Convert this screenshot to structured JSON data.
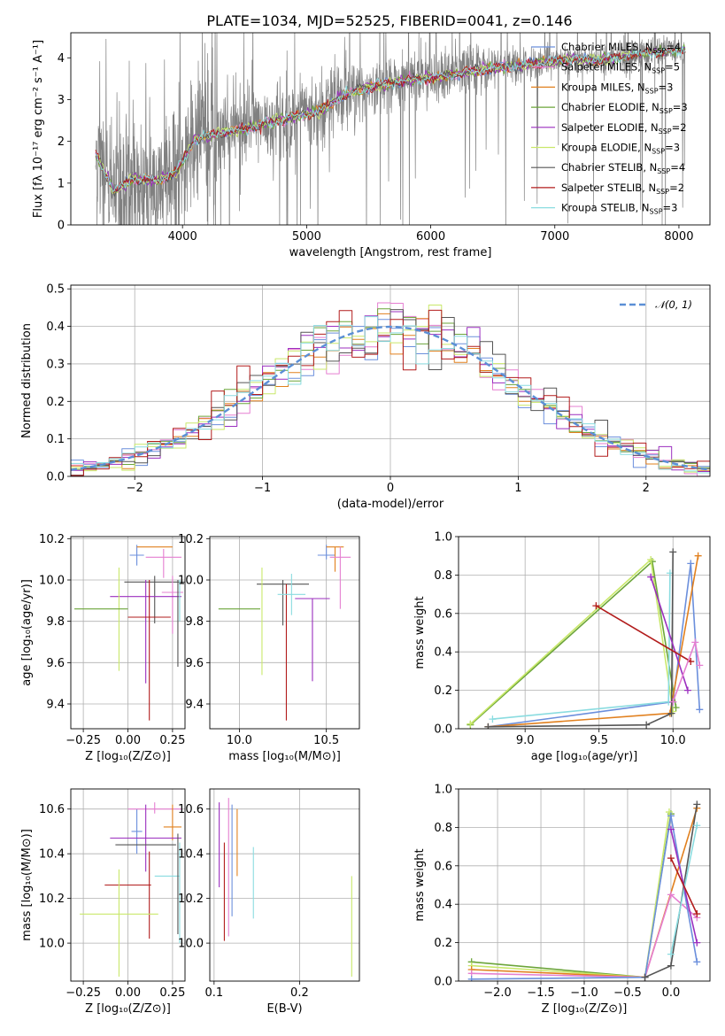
{
  "title": "PLATE=1034, MJD=52525, FIBERID=0041, z=0.146",
  "colors": {
    "chabrier_miles": "#6b8fdc",
    "salpeter_miles": "#e57fd1",
    "kroupa_miles": "#e1801e",
    "chabrier_elodie": "#6ca53a",
    "salpeter_elodie": "#9b2fbf",
    "kroupa_elodie": "#c9e86a",
    "chabrier_stelib": "#555555",
    "salpeter_stelib": "#b21c1c",
    "kroupa_stelib": "#8adce0",
    "data": "#808080",
    "normal": "#5b8fd6"
  },
  "chart_data": [
    {
      "id": "spectrum",
      "type": "line",
      "title": "PLATE=1034, MJD=52525, FIBERID=0041, z=0.146",
      "xlabel": "wavelength [Angstrom, rest frame]",
      "ylabel": "Flux [fλ 10⁻¹⁷ erg cm⁻² s⁻¹ A⁻¹]",
      "xlim": [
        3100,
        8250
      ],
      "ylim": [
        0,
        4.6
      ],
      "xticks": [
        "4000",
        "5000",
        "6000",
        "7000",
        "8000"
      ],
      "yticks": [
        "0",
        "1",
        "2",
        "3",
        "4"
      ],
      "grid": false,
      "legend_placement": "top-right",
      "legend": [
        {
          "name": "Chabrier MILES",
          "n": "4",
          "color_key": "chabrier_miles"
        },
        {
          "name": "Salpeter MILES",
          "n": "5",
          "color_key": "salpeter_miles"
        },
        {
          "name": "Kroupa MILES",
          "n": "3",
          "color_key": "kroupa_miles"
        },
        {
          "name": "Chabrier ELODIE",
          "n": "3",
          "color_key": "chabrier_elodie"
        },
        {
          "name": "Salpeter ELODIE",
          "n": "2",
          "color_key": "salpeter_elodie"
        },
        {
          "name": "Kroupa ELODIE",
          "n": "3",
          "color_key": "kroupa_elodie"
        },
        {
          "name": "Chabrier STELIB",
          "n": "4",
          "color_key": "chabrier_stelib"
        },
        {
          "name": "Salpeter STELIB",
          "n": "2",
          "color_key": "salpeter_stelib"
        },
        {
          "name": "Kroupa STELIB",
          "n": "3",
          "color_key": "kroupa_stelib"
        }
      ],
      "continuum": {
        "x": [
          3300,
          3450,
          3600,
          3800,
          3950,
          4100,
          4300,
          4500,
          4700,
          4900,
          5100,
          5300,
          5500,
          5700,
          5900,
          6100,
          6300,
          6500,
          6700,
          6900,
          7100,
          7300,
          7500,
          7700,
          7900,
          8050
        ],
        "y": [
          1.7,
          0.8,
          1.1,
          1.05,
          1.25,
          2.05,
          2.2,
          2.3,
          2.45,
          2.6,
          2.7,
          3.1,
          3.3,
          3.4,
          3.5,
          3.55,
          3.65,
          3.75,
          3.8,
          3.9,
          3.95,
          3.95,
          4.0,
          4.1,
          4.15,
          4.2
        ]
      }
    },
    {
      "id": "residuals",
      "type": "bar",
      "xlabel": "(data-model)/error",
      "ylabel": "Normed distribution",
      "xlim": [
        -2.5,
        2.5
      ],
      "ylim": [
        0,
        0.51
      ],
      "xticks": [
        "−2",
        "−1",
        "0",
        "1",
        "2"
      ],
      "yticks": [
        "0.0",
        "0.1",
        "0.2",
        "0.3",
        "0.4",
        "0.5"
      ],
      "grid": true,
      "legend_placement": "top-right",
      "legend": [
        {
          "name": "𝒩(0, 1)",
          "color_key": "normal"
        }
      ],
      "bin_edges": [
        -2.5,
        -2.4,
        -2.3,
        -2.2,
        -2.1,
        -2.0,
        -1.9,
        -1.8,
        -1.7,
        -1.6,
        -1.5,
        -1.4,
        -1.3,
        -1.2,
        -1.1,
        -1.0,
        -0.9,
        -0.8,
        -0.7,
        -0.6,
        -0.5,
        -0.4,
        -0.3,
        -0.2,
        -0.1,
        0.0,
        0.1,
        0.2,
        0.3,
        0.4,
        0.5,
        0.6,
        0.7,
        0.8,
        0.9,
        1.0,
        1.1,
        1.2,
        1.3,
        1.4,
        1.5,
        1.6,
        1.7,
        1.8,
        1.9,
        2.0,
        2.1,
        2.2,
        2.3,
        2.4,
        2.5
      ]
    },
    {
      "id": "age-vs-z",
      "type": "scatter",
      "xlabel": "Z [log₁₀(Z/Z⊙)]",
      "ylabel": "age  [log₁₀(age/yr)]",
      "xlim": [
        -0.32,
        0.32
      ],
      "ylim": [
        9.28,
        10.21
      ],
      "xticks": [
        "−0.25",
        "0.00",
        "0.25"
      ],
      "yticks": [
        "9.4",
        "9.6",
        "9.8",
        "10.0",
        "10.2"
      ],
      "grid": true,
      "points": [
        {
          "x": 0.05,
          "y": 10.12,
          "xerr": 0.04,
          "yerr": [
            0.05,
            0.05
          ],
          "color_key": "chabrier_miles"
        },
        {
          "x": 0.15,
          "y": 10.16,
          "xerr": 0.1,
          "yerr": [
            0.0,
            0.0
          ],
          "color_key": "kroupa_miles"
        },
        {
          "x": 0.2,
          "y": 10.11,
          "xerr": 0.1,
          "yerr": [
            0.04,
            0.1
          ],
          "color_key": "salpeter_miles"
        },
        {
          "x": 0.15,
          "y": 9.99,
          "xerr": 0.17,
          "yerr": [
            0.03,
            0.2
          ],
          "color_key": "chabrier_stelib"
        },
        {
          "x": 0.25,
          "y": 9.94,
          "xerr": 0.06,
          "yerr": [
            0.08,
            0.2
          ],
          "color_key": "salpeter_miles"
        },
        {
          "x": 0.1,
          "y": 9.92,
          "xerr": 0.2,
          "yerr": [
            0.08,
            0.42
          ],
          "color_key": "salpeter_elodie"
        },
        {
          "x": -0.05,
          "y": 9.86,
          "xerr": 0.0,
          "yerr": [
            0.2,
            0.3
          ],
          "color_key": "kroupa_elodie"
        },
        {
          "x": -0.15,
          "y": 9.86,
          "xerr": 0.15,
          "yerr": [
            0.0,
            0.0
          ],
          "color_key": "chabrier_elodie"
        },
        {
          "x": 0.12,
          "y": 9.82,
          "xerr": 0.12,
          "yerr": [
            0.18,
            0.5
          ],
          "color_key": "salpeter_stelib"
        },
        {
          "x": 0.28,
          "y": 9.98,
          "xerr": 0.0,
          "yerr": [
            0.02,
            0.4
          ],
          "color_key": "chabrier_stelib"
        },
        {
          "x": 0.29,
          "y": 9.95,
          "xerr": 0.0,
          "yerr": [
            0.05,
            0.15
          ],
          "color_key": "kroupa_stelib"
        }
      ]
    },
    {
      "id": "age-vs-mass",
      "type": "scatter",
      "xlabel": "mass [log₁₀(M/M⊙)]",
      "ylabel": "",
      "xlim": [
        9.83,
        10.69
      ],
      "ylim": [
        9.28,
        10.21
      ],
      "xticks": [
        "10.0",
        "10.5"
      ],
      "yticks": [
        "9.4",
        "9.6",
        "9.8",
        "10.0",
        "10.2"
      ],
      "grid": true,
      "points": [
        {
          "x": 10.5,
          "y": 10.12,
          "xerr": 0.05,
          "yerr": [
            0.05,
            0.02
          ],
          "color_key": "chabrier_miles"
        },
        {
          "x": 10.55,
          "y": 10.16,
          "xerr": 0.05,
          "yerr": [
            0.0,
            0.12
          ],
          "color_key": "kroupa_miles"
        },
        {
          "x": 10.58,
          "y": 10.11,
          "xerr": 0.06,
          "yerr": [
            0.05,
            0.25
          ],
          "color_key": "salpeter_miles"
        },
        {
          "x": 10.25,
          "y": 9.98,
          "xerr": 0.15,
          "yerr": [
            0.02,
            0.2
          ],
          "color_key": "chabrier_stelib"
        },
        {
          "x": 10.42,
          "y": 9.91,
          "xerr": 0.1,
          "yerr": [
            0.0,
            0.4
          ],
          "color_key": "salpeter_elodie"
        },
        {
          "x": 10.13,
          "y": 9.86,
          "xerr": 0.0,
          "yerr": [
            0.2,
            0.32
          ],
          "color_key": "kroupa_elodie"
        },
        {
          "x": 10.0,
          "y": 9.86,
          "xerr": 0.12,
          "yerr": [
            0.0,
            0.0
          ],
          "color_key": "chabrier_elodie"
        },
        {
          "x": 10.27,
          "y": 9.82,
          "xerr": 0.0,
          "yerr": [
            0.16,
            0.5
          ],
          "color_key": "salpeter_stelib"
        },
        {
          "x": 10.3,
          "y": 9.93,
          "xerr": 0.08,
          "yerr": [
            0.1,
            0.1
          ],
          "color_key": "kroupa_stelib"
        }
      ]
    },
    {
      "id": "weight-vs-age",
      "type": "line",
      "xlabel": "age  [log₁₀(age/yr)]",
      "ylabel": "mass weight",
      "xlim": [
        8.55,
        10.25
      ],
      "ylim": [
        0,
        1.0
      ],
      "xticks": [
        "9.0",
        "9.5",
        "10.0"
      ],
      "yticks": [
        "0.0",
        "0.2",
        "0.4",
        "0.6",
        "0.8",
        "1.0"
      ],
      "grid": true,
      "series": [
        {
          "color_key": "chabrier_elodie",
          "x": [
            8.63,
            9.86,
            10.02
          ],
          "y": [
            0.02,
            0.87,
            0.11
          ]
        },
        {
          "color_key": "kroupa_elodie",
          "x": [
            8.63,
            9.85,
            10.0
          ],
          "y": [
            0.025,
            0.88,
            0.09
          ]
        },
        {
          "color_key": "chabrier_miles",
          "x": [
            8.75,
            10.0,
            10.12,
            10.18
          ],
          "y": [
            0.01,
            0.14,
            0.86,
            0.1
          ]
        },
        {
          "color_key": "kroupa_stelib",
          "x": [
            8.78,
            9.97,
            9.98
          ],
          "y": [
            0.05,
            0.14,
            0.81
          ]
        },
        {
          "color_key": "kroupa_miles",
          "x": [
            8.75,
            9.98,
            10.17
          ],
          "y": [
            0.01,
            0.08,
            0.9
          ]
        },
        {
          "color_key": "chabrier_stelib",
          "x": [
            8.75,
            9.82,
            9.99,
            10.0
          ],
          "y": [
            0.01,
            0.02,
            0.08,
            0.92
          ]
        },
        {
          "color_key": "salpeter_elodie",
          "x": [
            9.85,
            10.1
          ],
          "y": [
            0.79,
            0.2
          ]
        },
        {
          "color_key": "salpeter_stelib",
          "x": [
            9.48,
            10.12
          ],
          "y": [
            0.64,
            0.35
          ]
        },
        {
          "color_key": "salpeter_miles",
          "x": [
            10.0,
            10.15,
            10.18
          ],
          "y": [
            0.14,
            0.45,
            0.33
          ]
        }
      ]
    },
    {
      "id": "mass-vs-z",
      "type": "scatter",
      "xlabel": "Z [log₁₀(Z/Z⊙)]",
      "ylabel": "mass [log₁₀(M/M⊙)]",
      "xlim": [
        -0.32,
        0.32
      ],
      "ylim": [
        9.83,
        10.69
      ],
      "xticks": [
        "−0.25",
        "0.00",
        "0.25"
      ],
      "yticks": [
        "10.0",
        "10.2",
        "10.4",
        "10.6"
      ],
      "grid": true,
      "points": [
        {
          "x": 0.05,
          "y": 10.5,
          "xerr": 0.03,
          "yerr": [
            0.1,
            0.1
          ],
          "color_key": "chabrier_miles"
        },
        {
          "x": 0.15,
          "y": 10.6,
          "xerr": 0.15,
          "yerr": [
            0.03,
            0.02
          ],
          "color_key": "salpeter_miles"
        },
        {
          "x": 0.25,
          "y": 10.52,
          "xerr": 0.05,
          "yerr": [
            0.1,
            0.06
          ],
          "color_key": "kroupa_miles"
        },
        {
          "x": 0.1,
          "y": 10.47,
          "xerr": 0.2,
          "yerr": [
            0.15,
            0.15
          ],
          "color_key": "salpeter_elodie"
        },
        {
          "x": 0.1,
          "y": 10.44,
          "xerr": 0.17,
          "yerr": [
            0.0,
            0.0
          ],
          "color_key": "chabrier_stelib"
        },
        {
          "x": 0.22,
          "y": 10.3,
          "xerr": 0.07,
          "yerr": [
            0.0,
            0.0
          ],
          "color_key": "kroupa_stelib"
        },
        {
          "x": 0.0,
          "y": 10.26,
          "xerr": 0.13,
          "yerr": [
            0.0,
            0.0
          ],
          "color_key": "salpeter_stelib"
        },
        {
          "x": 0.12,
          "y": 10.26,
          "xerr": 0.0,
          "yerr": [
            0.15,
            0.24
          ],
          "color_key": "salpeter_stelib"
        },
        {
          "x": -0.05,
          "y": 10.13,
          "xerr": 0.22,
          "yerr": [
            0.2,
            0.28
          ],
          "color_key": "kroupa_elodie"
        },
        {
          "x": 0.28,
          "y": 10.44,
          "xerr": 0.0,
          "yerr": [
            0.05,
            0.4
          ],
          "color_key": "chabrier_stelib"
        },
        {
          "x": 0.29,
          "y": 10.3,
          "xerr": 0.0,
          "yerr": [
            0.15,
            0.3
          ],
          "color_key": "kroupa_stelib"
        }
      ]
    },
    {
      "id": "mass-vs-ebv",
      "type": "scatter",
      "xlabel": "E(B-V)",
      "ylabel": "",
      "xlim": [
        0.095,
        0.27
      ],
      "ylim": [
        9.83,
        10.69
      ],
      "xticks": [
        "0.1",
        "0.2"
      ],
      "yticks": [
        "10.0",
        "10.2",
        "10.4",
        "10.6"
      ],
      "grid": true,
      "segments": [
        {
          "x": 0.106,
          "y1": 10.25,
          "y2": 10.63,
          "color_key": "salpeter_elodie"
        },
        {
          "x": 0.112,
          "y1": 10.01,
          "y2": 10.45,
          "color_key": "salpeter_stelib"
        },
        {
          "x": 0.117,
          "y1": 10.03,
          "y2": 10.65,
          "color_key": "salpeter_miles"
        },
        {
          "x": 0.121,
          "y1": 10.12,
          "y2": 10.62,
          "color_key": "chabrier_miles"
        },
        {
          "x": 0.127,
          "y1": 10.3,
          "y2": 10.6,
          "color_key": "kroupa_miles"
        },
        {
          "x": 0.146,
          "y1": 10.11,
          "y2": 10.43,
          "color_key": "kroupa_stelib"
        },
        {
          "x": 0.261,
          "y1": 9.85,
          "y2": 10.3,
          "color_key": "kroupa_elodie"
        }
      ]
    },
    {
      "id": "weight-vs-z",
      "type": "line",
      "xlabel": "Z [log₁₀(Z/Z⊙)]",
      "ylabel": "mass weight",
      "xlim": [
        -2.45,
        0.45
      ],
      "ylim": [
        0,
        1.0
      ],
      "xticks": [
        "−2.0",
        "−1.5",
        "−1.0",
        "−0.5",
        "0.0"
      ],
      "yticks": [
        "0.0",
        "0.2",
        "0.4",
        "0.6",
        "0.8",
        "1.0"
      ],
      "grid": true,
      "series": [
        {
          "color_key": "chabrier_elodie",
          "x": [
            -2.3,
            -0.3,
            0.0
          ],
          "y": [
            0.1,
            0.02,
            0.87
          ]
        },
        {
          "color_key": "kroupa_elodie",
          "x": [
            -2.3,
            -0.3,
            -0.02
          ],
          "y": [
            0.08,
            0.02,
            0.88
          ]
        },
        {
          "color_key": "kroupa_miles",
          "x": [
            -2.3,
            -0.3,
            0.3
          ],
          "y": [
            0.06,
            0.02,
            0.9
          ]
        },
        {
          "color_key": "salpeter_miles",
          "x": [
            -2.3,
            -0.3,
            0.0,
            0.3
          ],
          "y": [
            0.04,
            0.02,
            0.45,
            0.33
          ]
        },
        {
          "color_key": "chabrier_miles",
          "x": [
            -2.3,
            -0.3,
            0.0,
            0.3
          ],
          "y": [
            0.01,
            0.02,
            0.86,
            0.1
          ]
        },
        {
          "color_key": "chabrier_stelib",
          "x": [
            -0.3,
            0.0,
            0.3
          ],
          "y": [
            0.02,
            0.08,
            0.92
          ]
        },
        {
          "color_key": "kroupa_stelib",
          "x": [
            0.0,
            0.3
          ],
          "y": [
            0.14,
            0.81
          ]
        },
        {
          "color_key": "salpeter_elodie",
          "x": [
            0.0,
            0.3
          ],
          "y": [
            0.79,
            0.2
          ]
        },
        {
          "color_key": "salpeter_stelib",
          "x": [
            0.0,
            0.3
          ],
          "y": [
            0.64,
            0.35
          ]
        }
      ]
    }
  ]
}
